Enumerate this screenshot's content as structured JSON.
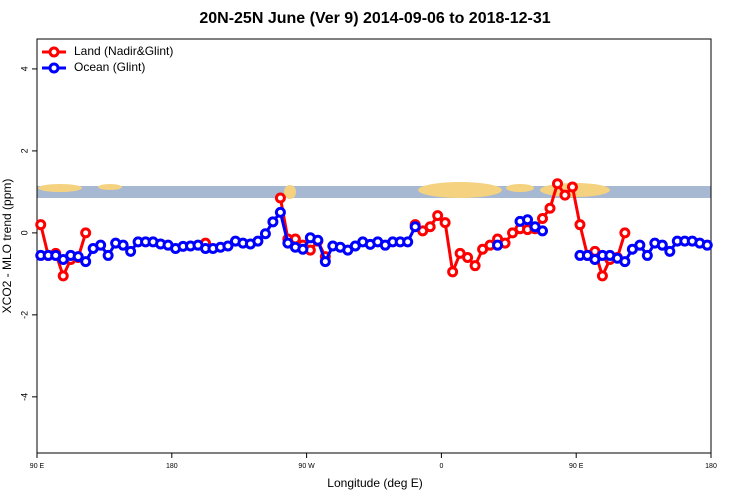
{
  "chart_data": {
    "type": "line",
    "title": "20N-25N June (Ver 9)   2014-09-06 to 2018-12-31",
    "xlabel": "Longitude (deg E)",
    "ylabel": "XCO2 - MLO trend (ppm)",
    "x": [
      92.5,
      97.5,
      102.5,
      107.5,
      112.5,
      117.5,
      122.5,
      127.5,
      132.5,
      137.5,
      142.5,
      147.5,
      152.5,
      157.5,
      162.5,
      167.5,
      172.5,
      177.5,
      182.5,
      187.5,
      192.5,
      197.5,
      202.5,
      207.5,
      212.5,
      217.5,
      222.5,
      227.5,
      232.5,
      237.5,
      242.5,
      247.5,
      252.5,
      257.5,
      262.5,
      267.5,
      272.5,
      277.5,
      282.5,
      287.5,
      292.5,
      297.5,
      302.5,
      307.5,
      312.5,
      317.5,
      322.5,
      327.5,
      332.5,
      337.5,
      342.5,
      347.5,
      352.5,
      357.5,
      362.5,
      367.5,
      372.5,
      377.5,
      382.5,
      387.5,
      392.5,
      397.5,
      402.5,
      407.5,
      412.5,
      417.5,
      422.5,
      427.5,
      432.5,
      437.5,
      442.5,
      447.5,
      452.5,
      457.5,
      462.5,
      467.5,
      472.5,
      477.5,
      482.5,
      487.5,
      492.5,
      497.5,
      502.5,
      507.5,
      512.5,
      517.5,
      522.5,
      527.5,
      532.5,
      537.5
    ],
    "series": [
      {
        "name": "Land (Nadir&Glint)",
        "color": "#ff0000",
        "values": [
          0.2,
          -0.55,
          -0.5,
          -1.05,
          -0.65,
          -0.6,
          0,
          null,
          null,
          null,
          null,
          null,
          null,
          null,
          null,
          null,
          null,
          null,
          null,
          null,
          null,
          null,
          -0.25,
          null,
          null,
          null,
          null,
          null,
          null,
          null,
          null,
          null,
          0.85,
          -0.15,
          -0.15,
          -0.3,
          -0.42,
          -0.2,
          -0.58,
          null,
          null,
          null,
          null,
          null,
          null,
          null,
          null,
          null,
          null,
          null,
          0.2,
          0.05,
          0.15,
          0.42,
          0.25,
          -0.95,
          -0.5,
          -0.6,
          -0.8,
          -0.4,
          -0.3,
          -0.15,
          -0.25,
          0,
          0.1,
          0.08,
          0.1,
          0.35,
          0.6,
          1.2,
          0.92,
          1.12,
          0.2,
          -0.55,
          -0.45,
          -1.05,
          -0.65,
          -0.6,
          0,
          null,
          null,
          null,
          null,
          null,
          null,
          null,
          null,
          null,
          null,
          null
        ]
      },
      {
        "name": "Ocean (Glint)",
        "color": "#0000ff",
        "values": [
          -0.55,
          -0.55,
          -0.55,
          -0.65,
          -0.55,
          -0.58,
          -0.7,
          -0.38,
          -0.3,
          -0.55,
          -0.25,
          -0.3,
          -0.45,
          -0.22,
          -0.22,
          -0.22,
          -0.27,
          -0.3,
          -0.38,
          -0.33,
          -0.32,
          -0.3,
          -0.38,
          -0.38,
          -0.35,
          -0.32,
          -0.2,
          -0.25,
          -0.27,
          -0.2,
          -0.02,
          0.27,
          0.5,
          -0.25,
          -0.35,
          -0.4,
          -0.12,
          -0.18,
          -0.7,
          -0.32,
          -0.35,
          -0.42,
          -0.32,
          -0.22,
          -0.28,
          -0.22,
          -0.3,
          -0.22,
          -0.22,
          -0.22,
          0.15,
          null,
          null,
          null,
          null,
          null,
          null,
          null,
          null,
          null,
          null,
          -0.3,
          null,
          null,
          0.28,
          0.32,
          0.15,
          0.05,
          null,
          null,
          null,
          null,
          -0.55,
          -0.55,
          -0.65,
          -0.55,
          -0.55,
          -0.62,
          -0.7,
          -0.4,
          -0.3,
          -0.55,
          -0.25,
          -0.3,
          -0.45,
          -0.2,
          -0.2,
          -0.2,
          -0.25,
          -0.3
        ]
      }
    ],
    "xlim": [
      90,
      540
    ],
    "xticks": [
      {
        "value": 90,
        "label": "90 E"
      },
      180,
      {
        "value": 270,
        "label": "90 W"
      },
      {
        "value": 360,
        "label": "0"
      },
      {
        "value": 450,
        "label": "90 E"
      },
      {
        "value": 540,
        "label": "180"
      }
    ],
    "ylim": [
      -5.37,
      4.73
    ],
    "yticks": [
      -4,
      -2,
      0,
      2,
      4
    ],
    "legend": "top-left"
  }
}
